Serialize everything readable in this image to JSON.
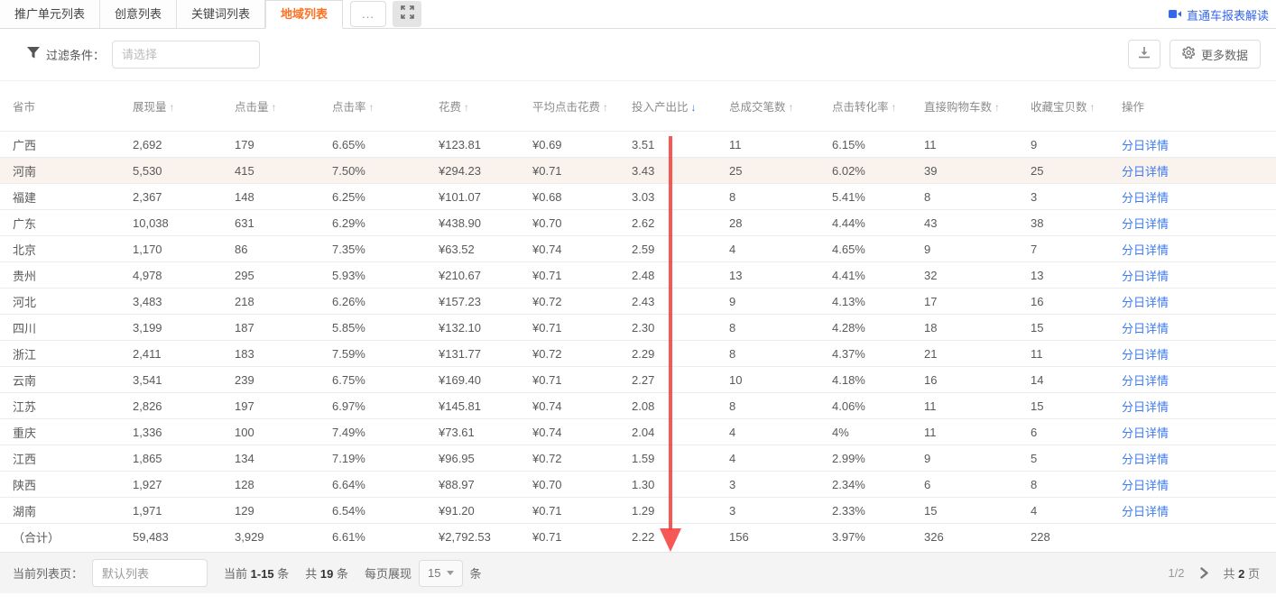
{
  "colors": {
    "accent_orange": "#ff7021",
    "link_blue": "#3d7bf5",
    "sort_active_blue": "#2e7ef2",
    "red_arrow": "#f5413d",
    "row_highlight": "#faf2ec"
  },
  "tabs": {
    "items": [
      {
        "label": "推广单元列表",
        "active": false
      },
      {
        "label": "创意列表",
        "active": false
      },
      {
        "label": "关键词列表",
        "active": false
      },
      {
        "label": "地域列表",
        "active": true
      }
    ],
    "more_label": "..."
  },
  "report_link_label": "直通车报表解读",
  "toolbar": {
    "filter_label": "过滤条件：",
    "filter_placeholder": "请选择",
    "more_data_label": "更多数据"
  },
  "table": {
    "columns": [
      {
        "label": "省市",
        "sort": null
      },
      {
        "label": "展现量",
        "sort": "asc"
      },
      {
        "label": "点击量",
        "sort": "asc"
      },
      {
        "label": "点击率",
        "sort": "asc"
      },
      {
        "label": "花费",
        "sort": "asc"
      },
      {
        "label": "平均点击花费",
        "sort": "asc"
      },
      {
        "label": "投入产出比",
        "sort": "desc",
        "sort_active": true
      },
      {
        "label": "总成交笔数",
        "sort": "asc"
      },
      {
        "label": "点击转化率",
        "sort": "asc"
      },
      {
        "label": "直接购物车数",
        "sort": "asc"
      },
      {
        "label": "收藏宝贝数",
        "sort": "asc"
      },
      {
        "label": "操作",
        "sort": null
      }
    ],
    "action_label": "分日详情",
    "rows": [
      {
        "province": "广西",
        "highlighted": false,
        "values": [
          "2,692",
          "179",
          "6.65%",
          "¥123.81",
          "¥0.69",
          "3.51",
          "11",
          "6.15%",
          "11",
          "9"
        ]
      },
      {
        "province": "河南",
        "highlighted": true,
        "values": [
          "5,530",
          "415",
          "7.50%",
          "¥294.23",
          "¥0.71",
          "3.43",
          "25",
          "6.02%",
          "39",
          "25"
        ]
      },
      {
        "province": "福建",
        "highlighted": false,
        "values": [
          "2,367",
          "148",
          "6.25%",
          "¥101.07",
          "¥0.68",
          "3.03",
          "8",
          "5.41%",
          "8",
          "3"
        ]
      },
      {
        "province": "广东",
        "highlighted": false,
        "values": [
          "10,038",
          "631",
          "6.29%",
          "¥438.90",
          "¥0.70",
          "2.62",
          "28",
          "4.44%",
          "43",
          "38"
        ]
      },
      {
        "province": "北京",
        "highlighted": false,
        "values": [
          "1,170",
          "86",
          "7.35%",
          "¥63.52",
          "¥0.74",
          "2.59",
          "4",
          "4.65%",
          "9",
          "7"
        ]
      },
      {
        "province": "贵州",
        "highlighted": false,
        "values": [
          "4,978",
          "295",
          "5.93%",
          "¥210.67",
          "¥0.71",
          "2.48",
          "13",
          "4.41%",
          "32",
          "13"
        ]
      },
      {
        "province": "河北",
        "highlighted": false,
        "values": [
          "3,483",
          "218",
          "6.26%",
          "¥157.23",
          "¥0.72",
          "2.43",
          "9",
          "4.13%",
          "17",
          "16"
        ]
      },
      {
        "province": "四川",
        "highlighted": false,
        "values": [
          "3,199",
          "187",
          "5.85%",
          "¥132.10",
          "¥0.71",
          "2.30",
          "8",
          "4.28%",
          "18",
          "15"
        ]
      },
      {
        "province": "浙江",
        "highlighted": false,
        "values": [
          "2,411",
          "183",
          "7.59%",
          "¥131.77",
          "¥0.72",
          "2.29",
          "8",
          "4.37%",
          "21",
          "11"
        ]
      },
      {
        "province": "云南",
        "highlighted": false,
        "values": [
          "3,541",
          "239",
          "6.75%",
          "¥169.40",
          "¥0.71",
          "2.27",
          "10",
          "4.18%",
          "16",
          "14"
        ]
      },
      {
        "province": "江苏",
        "highlighted": false,
        "values": [
          "2,826",
          "197",
          "6.97%",
          "¥145.81",
          "¥0.74",
          "2.08",
          "8",
          "4.06%",
          "11",
          "15"
        ]
      },
      {
        "province": "重庆",
        "highlighted": false,
        "values": [
          "1,336",
          "100",
          "7.49%",
          "¥73.61",
          "¥0.74",
          "2.04",
          "4",
          "4%",
          "11",
          "6"
        ]
      },
      {
        "province": "江西",
        "highlighted": false,
        "values": [
          "1,865",
          "134",
          "7.19%",
          "¥96.95",
          "¥0.72",
          "1.59",
          "4",
          "2.99%",
          "9",
          "5"
        ]
      },
      {
        "province": "陕西",
        "highlighted": false,
        "values": [
          "1,927",
          "128",
          "6.64%",
          "¥88.97",
          "¥0.70",
          "1.30",
          "3",
          "2.34%",
          "6",
          "8"
        ]
      },
      {
        "province": "湖南",
        "highlighted": false,
        "values": [
          "1,971",
          "129",
          "6.54%",
          "¥91.20",
          "¥0.71",
          "1.29",
          "3",
          "2.33%",
          "15",
          "4"
        ]
      }
    ],
    "total_row": {
      "label": "（合计）",
      "values": [
        "59,483",
        "3,929",
        "6.61%",
        "¥2,792.53",
        "¥0.71",
        "2.22",
        "156",
        "3.97%",
        "326",
        "228"
      ]
    }
  },
  "footer": {
    "list_label": "当前列表页：",
    "list_value": "默认列表",
    "current_prefix": "当前 ",
    "current_range": "1-15",
    "unit_1": " 条",
    "total_prefix": "共 ",
    "total_count": "19",
    "unit_2": " 条",
    "per_page_label": "每页展现",
    "per_page_value": "15",
    "unit_3": "条",
    "pagination": {
      "current": "1/2",
      "total_prefix": "共 ",
      "total_pages": "2",
      "total_suffix": " 页"
    }
  }
}
